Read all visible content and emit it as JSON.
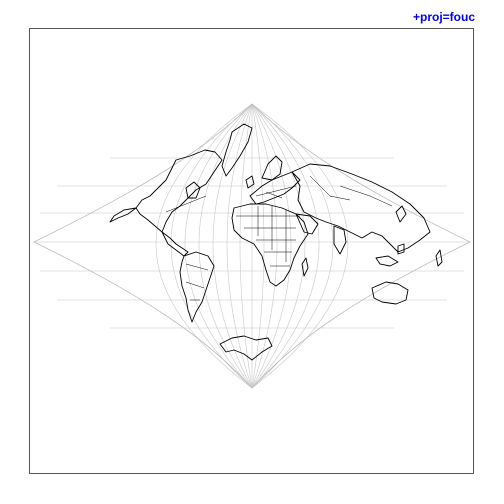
{
  "projection_label": "+proj=fouc",
  "colors": {
    "label": "#0000ee",
    "frame": "#555555",
    "graticule": "#c8c8c8",
    "coastline": "#000000",
    "background": "#ffffff"
  }
}
